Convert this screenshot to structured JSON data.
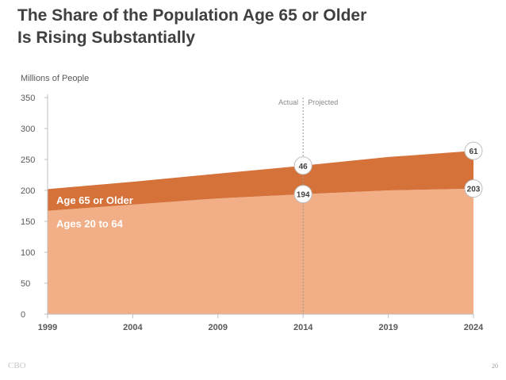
{
  "slide": {
    "title_line1": "The Share of the Population Age 65 or Older",
    "title_line2": "Is Rising Substantially",
    "footer_logo": "CBO",
    "page_number": "20"
  },
  "chart_data": {
    "type": "area",
    "stacked": true,
    "ylabel": "Millions of People",
    "xlabel": "",
    "ylim": [
      0,
      350
    ],
    "yticks": [
      "0",
      "50",
      "100",
      "150",
      "200",
      "250",
      "300",
      "350"
    ],
    "xlim": [
      1999,
      2024
    ],
    "xticks": [
      "1999",
      "2004",
      "2009",
      "2014",
      "2019",
      "2024"
    ],
    "divider_x": 2014,
    "divider_labels": {
      "left": "Actual",
      "right": "Projected"
    },
    "x": [
      1999,
      2004,
      2009,
      2014,
      2019,
      2024
    ],
    "series": [
      {
        "name": "Ages 20 to 64",
        "values": [
          167,
          177,
          187,
          194,
          200,
          203
        ],
        "color": "#f2ae86"
      },
      {
        "name": "Age 65 or Older",
        "values": [
          35,
          37,
          40,
          46,
          54,
          61
        ],
        "color": "#d4723a"
      }
    ],
    "markers": [
      {
        "x": 2014,
        "value": 46,
        "label": "46",
        "series": "Age 65 or Older"
      },
      {
        "x": 2014,
        "value": 194,
        "label": "194",
        "series": "Ages 20 to 64"
      },
      {
        "x": 2024,
        "value": 61,
        "label": "61",
        "series": "Age 65 or Older"
      },
      {
        "x": 2024,
        "value": 203,
        "label": "203",
        "series": "Ages 20 to 64"
      }
    ],
    "area_labels": [
      {
        "text": "Age 65 or Older",
        "series": "Age 65 or Older"
      },
      {
        "text": "Ages 20 to 64",
        "series": "Ages 20 to 64"
      }
    ],
    "colors": {
      "axis": "#bfbfbf",
      "tick_text": "#595959",
      "marker_text": "#404040",
      "area_label_text": "#ffffff"
    }
  }
}
